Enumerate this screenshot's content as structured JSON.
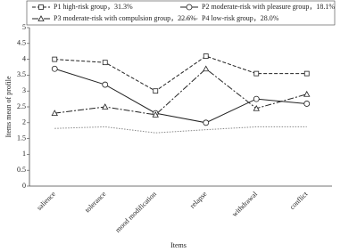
{
  "chart_data": {
    "type": "line",
    "x_label": "Items",
    "y_label": "Items mean of profile",
    "categories": [
      "salience",
      "tolerance",
      "mood modification",
      "relapse",
      "withdrawal",
      "conflict"
    ],
    "series": [
      {
        "name": "P1 high-risk group，31.3%",
        "color": "#222222",
        "dash": "4,2",
        "marker": "square",
        "values": [
          4.0,
          3.9,
          3.0,
          4.1,
          3.55,
          3.55
        ]
      },
      {
        "name": "P2 moderate-risk with pleasure group，18.1%",
        "color": "#222222",
        "dash": "none",
        "marker": "circle",
        "values": [
          3.7,
          3.2,
          2.3,
          2.0,
          2.75,
          2.6
        ]
      },
      {
        "name": "P3 moderate-risk with compulsion group，22.6%",
        "color": "#222222",
        "dash": "7,2,2,2",
        "marker": "triangle",
        "values": [
          2.3,
          2.5,
          2.25,
          3.7,
          2.45,
          2.9
        ]
      },
      {
        "name": "P4 low-risk group，28.0%",
        "color": "#888888",
        "dash": "1.5,1.5",
        "marker": "none",
        "values": [
          1.82,
          1.87,
          1.68,
          1.78,
          1.87,
          1.87
        ]
      }
    ],
    "ylim": [
      0,
      5
    ],
    "yticks": [
      0,
      0.5,
      1,
      1.5,
      2,
      2.5,
      3,
      3.5,
      4,
      4.5,
      5
    ]
  }
}
